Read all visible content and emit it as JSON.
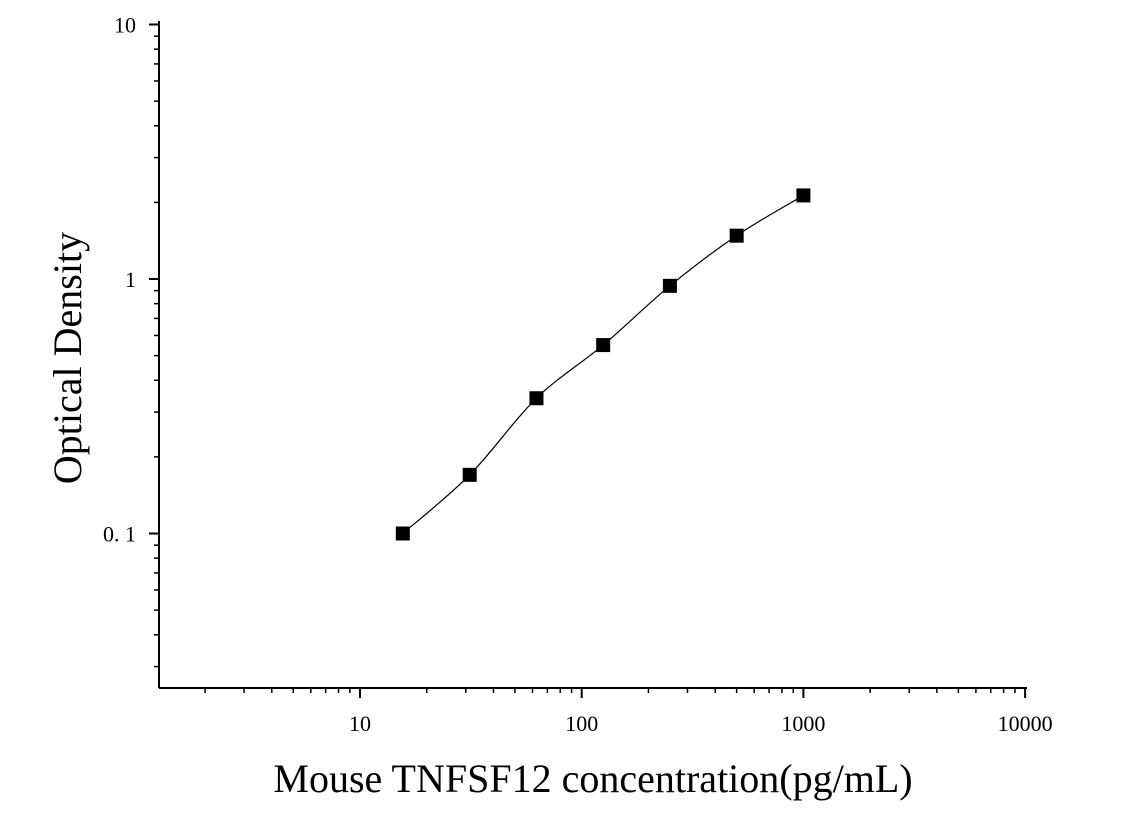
{
  "chart_data": {
    "type": "scatter",
    "xlabel": "Mouse TNFSF12 concentration(pg/mL)",
    "ylabel": "Optical Density",
    "x_scale": "log",
    "y_scale": "log",
    "xlim": [
      1.3,
      10000
    ],
    "ylim": [
      0.025,
      10
    ],
    "x_ticks": [
      10,
      100,
      1000,
      10000
    ],
    "x_tick_labels": [
      "10",
      "100",
      "1000",
      "10000"
    ],
    "y_ticks": [
      0.1,
      1,
      10
    ],
    "y_tick_labels": [
      "0. 1",
      "1",
      "10"
    ],
    "grid": false,
    "series": [
      {
        "marker": "square",
        "color": "#000000",
        "x": [
          15.6,
          31.25,
          62.5,
          125,
          250,
          500,
          1000
        ],
        "y": [
          0.1,
          0.17,
          0.34,
          0.55,
          0.94,
          1.48,
          2.13
        ]
      }
    ],
    "fit_curve": true
  }
}
